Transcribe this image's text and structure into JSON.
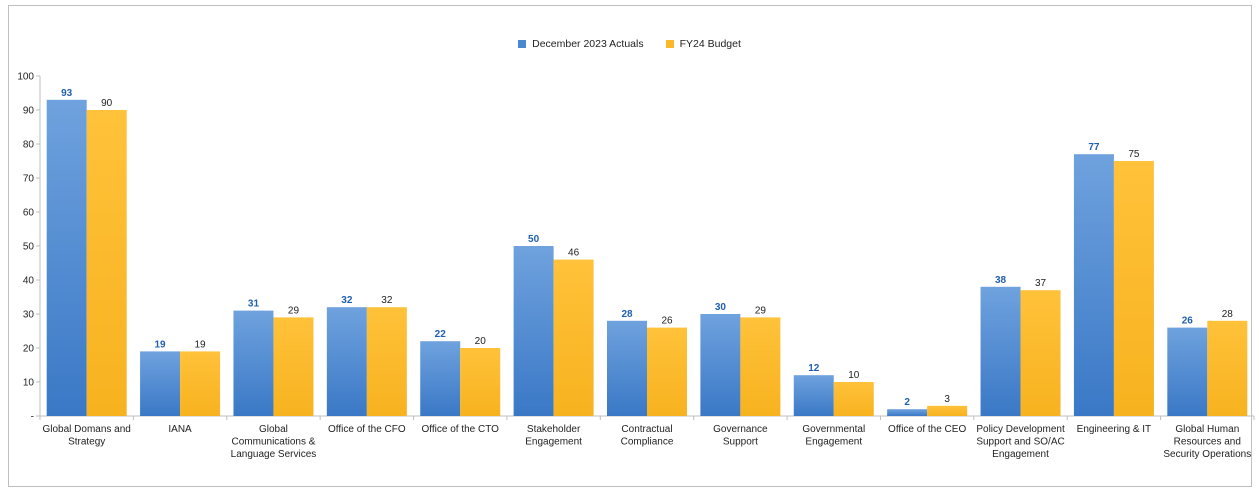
{
  "chart_data": {
    "type": "bar",
    "categories": [
      [
        "Global Domans and",
        "Strategy"
      ],
      [
        "IANA"
      ],
      [
        "Global",
        "Communications &",
        "Language Services"
      ],
      [
        "Office of the CFO"
      ],
      [
        "Office of the CTO"
      ],
      [
        "Stakeholder",
        "Engagement"
      ],
      [
        "Contractual",
        "Compliance"
      ],
      [
        "Governance",
        "Support"
      ],
      [
        "Governmental",
        "Engagement"
      ],
      [
        "Office of the CEO"
      ],
      [
        "Policy Development",
        "Support and SO/AC",
        "Engagement"
      ],
      [
        "Engineering & IT"
      ],
      [
        "Global Human",
        "Resources and",
        "Security Operations"
      ]
    ],
    "series": [
      {
        "name": "December 2023 Actuals",
        "color": "#4a89d2",
        "values": [
          93,
          19,
          31,
          32,
          22,
          50,
          28,
          30,
          12,
          2,
          38,
          77,
          26
        ]
      },
      {
        "name": "FY24 Budget",
        "color": "#fbb829",
        "values": [
          90,
          19,
          29,
          32,
          20,
          46,
          26,
          29,
          10,
          3,
          37,
          75,
          28
        ]
      }
    ],
    "yticks": [
      "-",
      "10",
      "20",
      "30",
      "40",
      "50",
      "60",
      "70",
      "80",
      "90",
      "100"
    ],
    "ylim": [
      0,
      100
    ],
    "legend_position": "top-center",
    "grid": false
  }
}
